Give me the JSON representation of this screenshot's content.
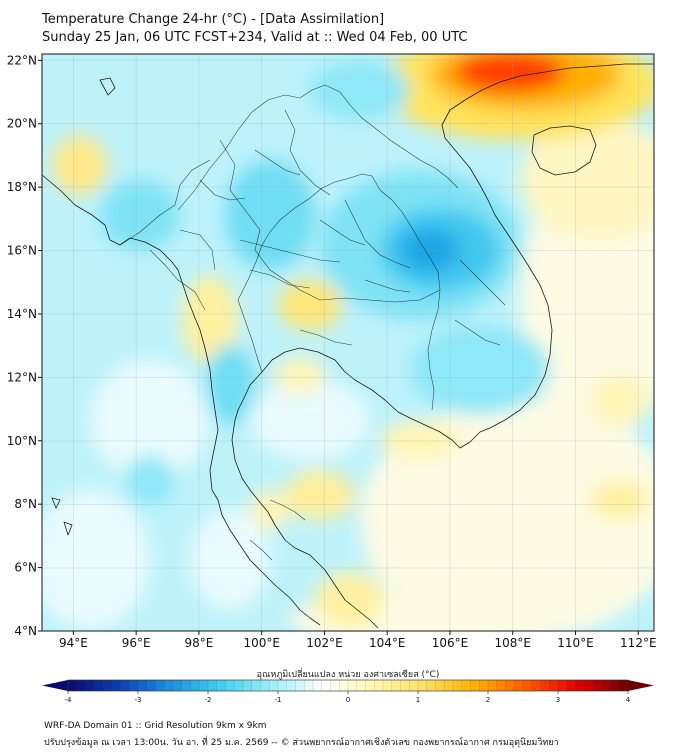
{
  "title": {
    "line1": "Temperature Change 24-hr (°C) - [Data Assimilation]",
    "line2": "Sunday 25 Jan, 06 UTC FCST+234, Valid at :: Wed 04 Feb, 00 UTC"
  },
  "map": {
    "lon_range": [
      93,
      112.5
    ],
    "lat_range": [
      4,
      22.2
    ],
    "lat_ticks": [
      {
        "value": 22,
        "label": "22°N"
      },
      {
        "value": 20,
        "label": "20°N"
      },
      {
        "value": 18,
        "label": "18°N"
      },
      {
        "value": 16,
        "label": "16°N"
      },
      {
        "value": 14,
        "label": "14°N"
      },
      {
        "value": 12,
        "label": "12°N"
      },
      {
        "value": 10,
        "label": "10°N"
      },
      {
        "value": 8,
        "label": "8°N"
      },
      {
        "value": 6,
        "label": "6°N"
      },
      {
        "value": 4,
        "label": "4°N"
      }
    ],
    "lon_ticks": [
      {
        "value": 94,
        "label": "94°E"
      },
      {
        "value": 96,
        "label": "96°E"
      },
      {
        "value": 98,
        "label": "98°E"
      },
      {
        "value": 100,
        "label": "100°E"
      },
      {
        "value": 102,
        "label": "102°E"
      },
      {
        "value": 104,
        "label": "104°E"
      },
      {
        "value": 106,
        "label": "106°E"
      },
      {
        "value": 108,
        "label": "108°E"
      },
      {
        "value": 110,
        "label": "110°E"
      },
      {
        "value": 112,
        "label": "112°E"
      }
    ]
  },
  "colorbar": {
    "title": "อุณหภูมิเปลี่ยนแปลง หน่วย องศาเซลเซียส (°C)",
    "min": -4,
    "max": 4,
    "ticks": [
      {
        "value": -4,
        "label": "-4"
      },
      {
        "value": -3,
        "label": "-3"
      },
      {
        "value": -2,
        "label": "-2"
      },
      {
        "value": -1,
        "label": "-1"
      },
      {
        "value": 0,
        "label": "0"
      },
      {
        "value": 1,
        "label": "1"
      },
      {
        "value": 2,
        "label": "2"
      },
      {
        "value": 3,
        "label": "3"
      },
      {
        "value": 4,
        "label": "4"
      }
    ],
    "colors": [
      "#0a0a6e",
      "#0b3fb0",
      "#1c8fe0",
      "#3fd0f0",
      "#9ef0fa",
      "#ffffff",
      "#fff8b0",
      "#ffe066",
      "#ffb000",
      "#ff5a00",
      "#e00000",
      "#6e0000"
    ]
  },
  "footer": {
    "line1": "WRF-DA Domain 01 :: Grid Resolution 9km x 9km",
    "line2": "ปรับปรุงข้อมูล ณ เวลา 13:00น. วัน อา. ที่ 25 ม.ค. 2569 -- © ส่วนพยากรณ์อากาศเชิงตัวเลข กองพยากรณ์อากาศ กรมอุตุนิยมวิทยา"
  }
}
